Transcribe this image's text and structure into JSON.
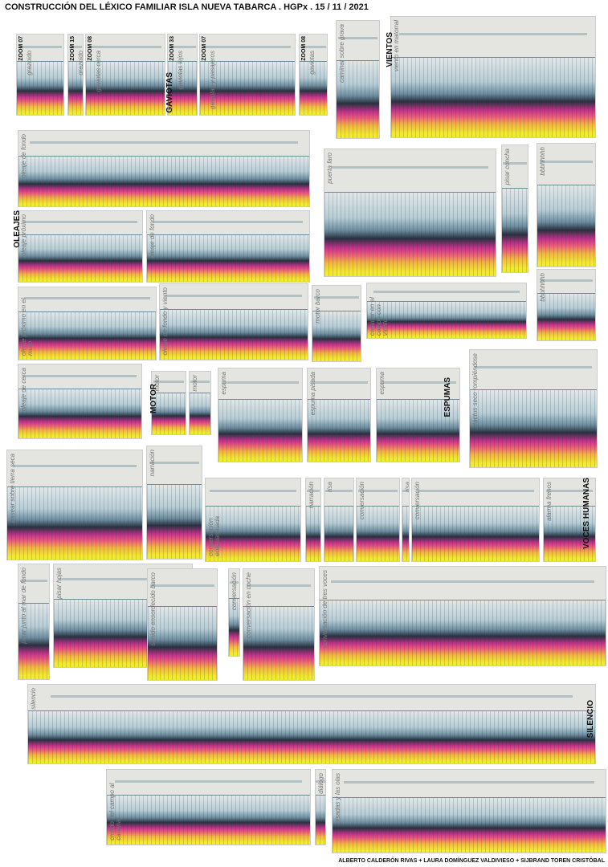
{
  "header": {
    "title": "CONSTRUCCIÓN DEL LÉXICO FAMILIAR ISLA NUEVA TABARCA . HGPx . 15 / 11 / 2021"
  },
  "footer": {
    "credits": "ALBERTO CALDERÓN RIVAS + LAURA DOMÍNGUEZ VALDIVIESO + SIJBRAND TOREN CRISTÓBAL"
  },
  "sections": [
    "GAVIOTAS",
    "VIENTOS",
    "OLEAJES",
    "MOTOR",
    "ESPUMAS",
    "VOCES HUMANAS",
    "SILENCIO"
  ],
  "panels": [
    {
      "label": "graznido",
      "zoom": "ZOOM 07"
    },
    {
      "label": "graznido",
      "zoom": "ZOOM 15"
    },
    {
      "label": "gaviotas cerca",
      "zoom": "ZOOM 08"
    },
    {
      "label": "gaviotas lejos",
      "zoom": "ZOOM 33"
    },
    {
      "label": "gaviotas y pasajeros",
      "zoom": "ZOOM 07"
    },
    {
      "label": "gaviotas",
      "zoom": "ZOOM 08"
    },
    {
      "label": "caminar sobre grava"
    },
    {
      "label": "viento en matorral"
    },
    {
      "label": "oleaje de fondo"
    },
    {
      "label": "puerta faro"
    },
    {
      "label": "pisar concha"
    },
    {
      "label": "bbbhhhhh"
    },
    {
      "label": "oleaje próximo"
    },
    {
      "label": "oleaje de fondo"
    },
    {
      "label": "bbbhhhhh"
    },
    {
      "label": "oleaje próximo en el muro"
    },
    {
      "label": "oleaje de fondo y viento"
    },
    {
      "label": "motor barco"
    },
    {
      "label": "caminar en el campo con viento"
    },
    {
      "label": "oleaje de cerca"
    },
    {
      "label": "motor"
    },
    {
      "label": "motor"
    },
    {
      "label": "espuma"
    },
    {
      "label": "espuma pisada"
    },
    {
      "label": "espuma"
    },
    {
      "label": "cactus seco rompiéndose"
    },
    {
      "label": "pasear sobre tierra seca"
    },
    {
      "label": "narración"
    },
    {
      "label": "conversación entusiasmada"
    },
    {
      "label": "narración"
    },
    {
      "label": "risa"
    },
    {
      "label": "conversación"
    },
    {
      "label": "risa"
    },
    {
      "label": "conversación"
    },
    {
      "label": "alarma frenos"
    },
    {
      "label": "pisar junto al mar de fondo"
    },
    {
      "label": "pisar hojas"
    },
    {
      "label": "sonido ensordecido barco"
    },
    {
      "label": "conversación"
    },
    {
      "label": "conversación en coche"
    },
    {
      "label": "conversación de tres voces"
    },
    {
      "label": "silencio"
    },
    {
      "label": "crujido del campo al caminar"
    },
    {
      "label": "diálogo"
    },
    {
      "label": "pisadas y las olas"
    }
  ]
}
